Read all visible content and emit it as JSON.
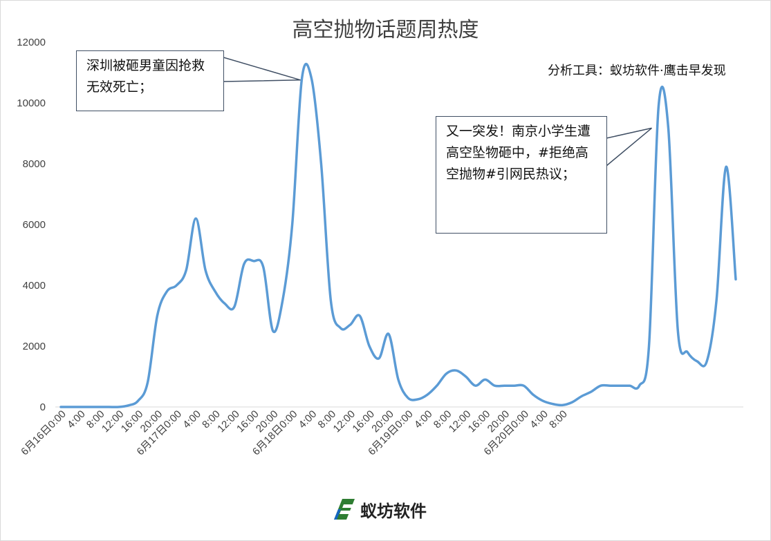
{
  "chart_data": {
    "type": "line",
    "title": "高空抛物话题周热度",
    "xlabel": "",
    "ylabel": "",
    "ylim": [
      0,
      12000
    ],
    "yticks": [
      0,
      2000,
      4000,
      6000,
      8000,
      10000,
      12000
    ],
    "grid": false,
    "legend": "none",
    "line_color": "#5b9bd5",
    "x_tick_labels": [
      "6月16日0:00",
      "4:00",
      "8:00",
      "12:00",
      "16:00",
      "20:00",
      "6月17日0:00",
      "4:00",
      "8:00",
      "12:00",
      "16:00",
      "20:00",
      "6月18日0:00",
      "4:00",
      "8:00",
      "12:00",
      "16:00",
      "20:00",
      "6月19日0:00",
      "4:00",
      "8:00",
      "12:00",
      "16:00",
      "20:00",
      "6月20日0:00",
      "4:00",
      "8:00"
    ],
    "series": [
      {
        "values": [
          0,
          0,
          0,
          0,
          0,
          0,
          0,
          50,
          200,
          800,
          3000,
          3800,
          4000,
          4500,
          6200,
          4500,
          3800,
          3400,
          3300,
          4700,
          4800,
          4600,
          2500,
          3500,
          6000,
          10800,
          10800,
          8000,
          3500,
          2600,
          2700,
          3000,
          2000,
          1600,
          2400,
          900,
          300,
          250,
          400,
          700,
          1100,
          1200,
          1000,
          700,
          900,
          700,
          700,
          700,
          700,
          400,
          200,
          100,
          60,
          150,
          350,
          500,
          700,
          700,
          700,
          700,
          700,
          2000,
          9900,
          9200,
          2500,
          1800,
          1500,
          1500,
          3500,
          7900,
          4200
        ]
      }
    ],
    "annotations": [
      {
        "text": "深圳被砸男童因抢救无效死亡；",
        "x_index": 25
      },
      {
        "text": "又一突发！南京小学生遭高空坠物砸中，#拒绝高空抛物#引网民热议；",
        "x_index": 62
      }
    ]
  },
  "callouts": {
    "left_text": "深圳被砸男童因抢救无效死亡；",
    "right_text": "又一突发！南京小学生遭高空坠物砸中，#拒绝高空抛物#引网民热议；"
  },
  "source_note": "分析工具：蚁坊软件·鹰击早发现",
  "brand": {
    "name": "蚁坊软件",
    "logo_color": "#2e7d32",
    "logo_accent": "#1565c0"
  }
}
